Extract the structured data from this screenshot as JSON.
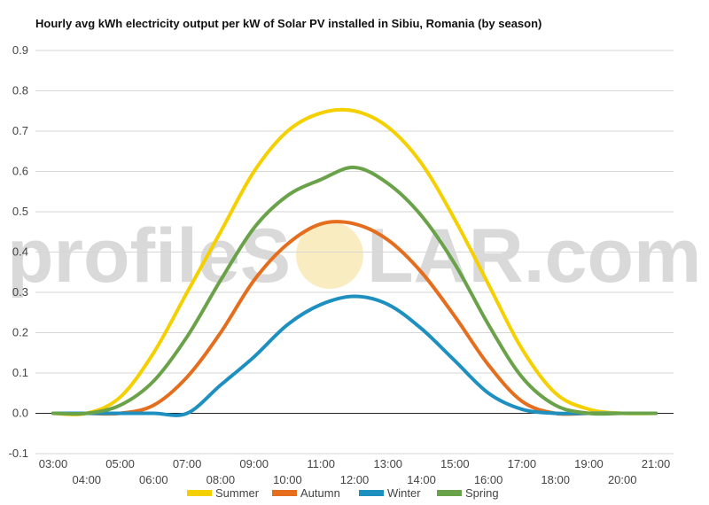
{
  "watermark": {
    "left": "profileS",
    "right": "LAR.com",
    "sun_color": "#f6e7b0"
  },
  "chart_data": {
    "type": "line",
    "title": "Hourly avg kWh electricity output per kW of Solar PV installed in Sibiu, Romania (by season)",
    "xlabel": "",
    "ylabel": "",
    "x": [
      "03:00",
      "04:00",
      "05:00",
      "06:00",
      "07:00",
      "08:00",
      "09:00",
      "10:00",
      "11:00",
      "12:00",
      "13:00",
      "14:00",
      "15:00",
      "16:00",
      "17:00",
      "18:00",
      "19:00",
      "20:00",
      "21:00"
    ],
    "ylim": [
      -0.1,
      0.9
    ],
    "yticks": [
      "0.9",
      "0.8",
      "0.7",
      "0.6",
      "0.5",
      "0.4",
      "0.3",
      "0.2",
      "0.1",
      "0.0",
      "-0.1"
    ],
    "grid": true,
    "legend_position": "bottom",
    "series": [
      {
        "name": "Summer",
        "color": "#f5d000",
        "values": [
          0.0,
          0.0,
          0.04,
          0.15,
          0.3,
          0.45,
          0.6,
          0.7,
          0.745,
          0.75,
          0.71,
          0.62,
          0.48,
          0.32,
          0.16,
          0.05,
          0.01,
          0.0,
          0.0
        ]
      },
      {
        "name": "Autumn",
        "color": "#e46e1e",
        "values": [
          0.0,
          0.0,
          0.0,
          0.02,
          0.09,
          0.2,
          0.33,
          0.42,
          0.47,
          0.47,
          0.43,
          0.35,
          0.24,
          0.12,
          0.03,
          0.0,
          0.0,
          0.0,
          0.0
        ]
      },
      {
        "name": "Winter",
        "color": "#1e90c0",
        "values": [
          0.0,
          0.0,
          0.0,
          0.0,
          0.0,
          0.07,
          0.14,
          0.22,
          0.27,
          0.29,
          0.27,
          0.21,
          0.13,
          0.05,
          0.01,
          0.0,
          0.0,
          0.0,
          0.0
        ]
      },
      {
        "name": "Spring",
        "color": "#6aa24a",
        "values": [
          0.0,
          0.0,
          0.02,
          0.08,
          0.19,
          0.33,
          0.46,
          0.54,
          0.58,
          0.61,
          0.57,
          0.49,
          0.37,
          0.22,
          0.09,
          0.02,
          0.0,
          0.0,
          0.0
        ]
      }
    ]
  }
}
